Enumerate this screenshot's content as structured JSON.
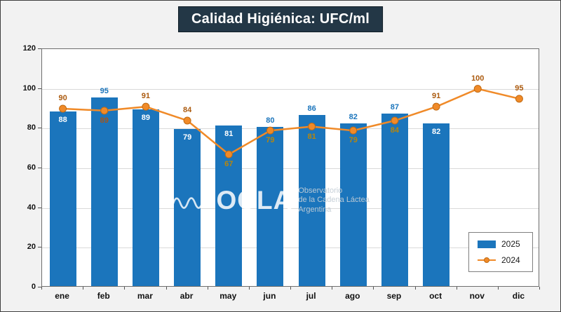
{
  "title": "Calidad Higiénica: UFC/ml",
  "watermark": {
    "name": "OCLA",
    "lines": [
      "Observatorio",
      "de la Cadena Láctea",
      "Argentina"
    ]
  },
  "chart_data": {
    "type": "bar+line",
    "title": "Calidad Higiénica: UFC/ml",
    "categories": [
      "ene",
      "feb",
      "mar",
      "abr",
      "may",
      "jun",
      "jul",
      "ago",
      "sep",
      "oct",
      "nov",
      "dic"
    ],
    "ylim": [
      0,
      120
    ],
    "yticks": [
      0,
      20,
      40,
      60,
      80,
      100,
      120
    ],
    "grid": true,
    "legend_position": "bottom-right",
    "series": [
      {
        "name": "2025",
        "type": "bar",
        "color": "#1B75BC",
        "values": [
          88,
          95,
          89,
          79,
          81,
          80,
          86,
          82,
          87,
          82,
          null,
          null
        ],
        "label_positions": [
          "in",
          "out",
          "in",
          "in",
          "in",
          "out",
          "out",
          "out",
          "out",
          "in"
        ],
        "label_color_in": "#FFFFFF",
        "label_color_out": "#1B75BC"
      },
      {
        "name": "2024",
        "type": "line",
        "color": "#F08A28",
        "marker_stroke": "#C06A12",
        "values": [
          90,
          89,
          91,
          84,
          67,
          79,
          81,
          79,
          84,
          91,
          100,
          95
        ],
        "label_positions": [
          "above",
          "below",
          "above",
          "above",
          "below",
          "below",
          "below",
          "below",
          "below",
          "above",
          "above",
          "above"
        ],
        "label_colors": [
          "#AB5A0E",
          "#A85517",
          "#AB5A0E",
          "#AB5A0E",
          "#B8860B",
          "#B8860B",
          "#B8860B",
          "#B8860B",
          "#B8860B",
          "#AB5A0E",
          "#AB5A0E",
          "#AB5A0E"
        ]
      }
    ]
  }
}
